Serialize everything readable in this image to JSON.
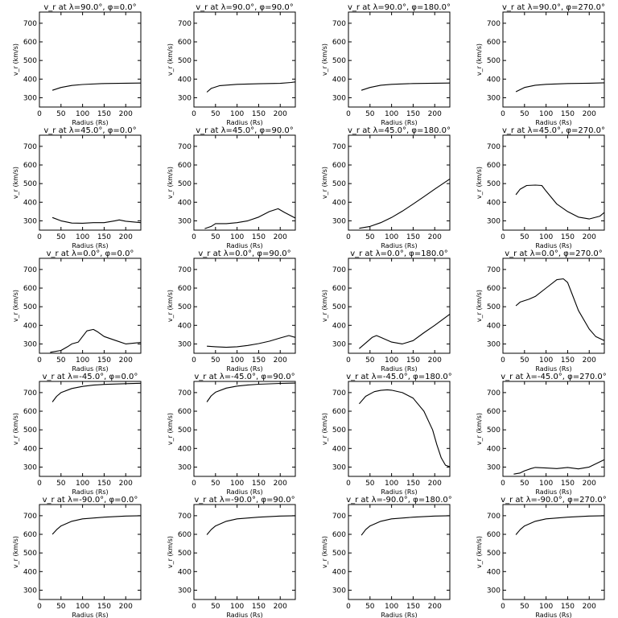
{
  "chart_data": [
    {
      "type": "line",
      "title": "v_r at λ=90.0°, φ=0.0°",
      "xlabel": "Radius (Rs)",
      "ylabel": "v_r (km/s)",
      "x": [
        30,
        50,
        75,
        100,
        150,
        200,
        235
      ],
      "y": [
        340,
        355,
        366,
        371,
        376,
        378,
        379
      ]
    },
    {
      "type": "line",
      "title": "v_r at λ=90.0°, φ=90.0°",
      "xlabel": "Radius (Rs)",
      "ylabel": "v_r (km/s)",
      "x": [
        30,
        40,
        60,
        100,
        150,
        200,
        225,
        235
      ],
      "y": [
        330,
        350,
        365,
        372,
        375,
        377,
        382,
        385
      ]
    },
    {
      "type": "line",
      "title": "v_r at λ=90.0°, φ=180.0°",
      "xlabel": "Radius (Rs)",
      "ylabel": "v_r (km/s)",
      "x": [
        30,
        50,
        75,
        100,
        150,
        200,
        235
      ],
      "y": [
        340,
        355,
        367,
        372,
        376,
        378,
        379
      ]
    },
    {
      "type": "line",
      "title": "v_r at λ=90.0°, φ=270.0°",
      "xlabel": "Radius (Rs)",
      "ylabel": "v_r (km/s)",
      "x": [
        30,
        50,
        75,
        100,
        150,
        200,
        235
      ],
      "y": [
        332,
        355,
        367,
        372,
        376,
        378,
        380
      ]
    },
    {
      "type": "line",
      "title": "v_r at λ=45.0°, φ=0.0°",
      "xlabel": "Radius (Rs)",
      "ylabel": "v_r (km/s)",
      "x": [
        30,
        50,
        75,
        100,
        125,
        150,
        175,
        185,
        200,
        235
      ],
      "y": [
        318,
        300,
        288,
        287,
        290,
        290,
        300,
        305,
        298,
        290
      ]
    },
    {
      "type": "line",
      "title": "v_r at λ=45.0°, φ=90.0°",
      "xlabel": "Radius (Rs)",
      "ylabel": "v_r (km/s)",
      "x": [
        25,
        40,
        50,
        75,
        100,
        125,
        150,
        175,
        195,
        210,
        235
      ],
      "y": [
        258,
        270,
        285,
        285,
        290,
        300,
        320,
        350,
        365,
        345,
        315
      ]
    },
    {
      "type": "line",
      "title": "v_r at λ=45.0°, φ=180.0°",
      "xlabel": "Radius (Rs)",
      "ylabel": "v_r (km/s)",
      "x": [
        25,
        50,
        75,
        100,
        125,
        150,
        175,
        200,
        235
      ],
      "y": [
        260,
        270,
        290,
        318,
        352,
        390,
        430,
        470,
        525
      ]
    },
    {
      "type": "line",
      "title": "v_r at λ=45.0°, φ=270.0°",
      "xlabel": "Radius (Rs)",
      "ylabel": "v_r (km/s)",
      "x": [
        30,
        40,
        55,
        75,
        90,
        100,
        125,
        150,
        175,
        200,
        225,
        235
      ],
      "y": [
        440,
        470,
        490,
        492,
        490,
        460,
        390,
        350,
        320,
        310,
        325,
        345
      ]
    },
    {
      "type": "line",
      "title": "v_r at λ=0.0°, φ=0.0°",
      "xlabel": "Radius (Rs)",
      "ylabel": "v_r (km/s)",
      "x": [
        25,
        50,
        65,
        75,
        90,
        100,
        110,
        125,
        135,
        150,
        175,
        200,
        235
      ],
      "y": [
        255,
        265,
        285,
        300,
        310,
        340,
        370,
        378,
        365,
        340,
        320,
        300,
        308
      ]
    },
    {
      "type": "line",
      "title": "v_r at λ=0.0°, φ=90.0°",
      "xlabel": "Radius (Rs)",
      "ylabel": "v_r (km/s)",
      "x": [
        30,
        50,
        75,
        100,
        125,
        150,
        175,
        200,
        220,
        235
      ],
      "y": [
        288,
        285,
        282,
        285,
        292,
        302,
        315,
        332,
        345,
        335
      ]
    },
    {
      "type": "line",
      "title": "v_r at λ=0.0°, φ=180.0°",
      "xlabel": "Radius (Rs)",
      "ylabel": "v_r (km/s)",
      "x": [
        25,
        40,
        55,
        65,
        75,
        100,
        125,
        150,
        175,
        200,
        235
      ],
      "y": [
        275,
        305,
        335,
        345,
        335,
        310,
        300,
        318,
        360,
        400,
        460
      ]
    },
    {
      "type": "line",
      "title": "v_r at λ=0.0°, φ=270.0°",
      "xlabel": "Radius (Rs)",
      "ylabel": "v_r (km/s)",
      "x": [
        30,
        40,
        60,
        75,
        100,
        125,
        140,
        150,
        160,
        175,
        200,
        215,
        235
      ],
      "y": [
        505,
        525,
        540,
        555,
        600,
        645,
        650,
        630,
        570,
        480,
        380,
        340,
        318
      ]
    },
    {
      "type": "line",
      "title": "v_r at λ=-45.0°, φ=0.0°",
      "xlabel": "Radius (Rs)",
      "ylabel": "v_r (km/s)",
      "x": [
        30,
        40,
        50,
        75,
        100,
        125,
        150,
        200,
        235
      ],
      "y": [
        650,
        680,
        700,
        722,
        733,
        740,
        744,
        748,
        750
      ]
    },
    {
      "type": "line",
      "title": "v_r at λ=-45.0°, φ=90.0°",
      "xlabel": "Radius (Rs)",
      "ylabel": "v_r (km/s)",
      "x": [
        30,
        40,
        50,
        75,
        100,
        125,
        150,
        200,
        235
      ],
      "y": [
        650,
        682,
        702,
        724,
        735,
        741,
        745,
        749,
        751
      ]
    },
    {
      "type": "line",
      "title": "v_r at λ=-45.0°, φ=180.0°",
      "xlabel": "Radius (Rs)",
      "ylabel": "v_r (km/s)",
      "x": [
        25,
        40,
        60,
        75,
        90,
        100,
        125,
        150,
        175,
        195,
        205,
        215,
        225,
        235
      ],
      "y": [
        640,
        680,
        705,
        712,
        715,
        713,
        700,
        670,
        600,
        500,
        420,
        350,
        310,
        302
      ]
    },
    {
      "type": "line",
      "title": "v_r at λ=-45.0°, φ=270.0°",
      "xlabel": "Radius (Rs)",
      "ylabel": "v_r (km/s)",
      "x": [
        25,
        40,
        50,
        65,
        75,
        100,
        125,
        150,
        175,
        200,
        235
      ],
      "y": [
        262,
        268,
        280,
        292,
        298,
        295,
        292,
        298,
        290,
        300,
        340
      ]
    },
    {
      "type": "line",
      "title": "v_r at λ=-90.0°, φ=0.0°",
      "xlabel": "Radius (Rs)",
      "ylabel": "v_r (km/s)",
      "x": [
        30,
        40,
        50,
        75,
        100,
        150,
        200,
        235
      ],
      "y": [
        600,
        625,
        645,
        670,
        683,
        692,
        698,
        700
      ]
    },
    {
      "type": "line",
      "title": "v_r at λ=-90.0°, φ=90.0°",
      "xlabel": "Radius (Rs)",
      "ylabel": "v_r (km/s)",
      "x": [
        30,
        40,
        50,
        75,
        100,
        150,
        200,
        235
      ],
      "y": [
        598,
        625,
        645,
        670,
        683,
        692,
        698,
        700
      ]
    },
    {
      "type": "line",
      "title": "v_r at λ=-90.0°, φ=180.0°",
      "xlabel": "Radius (Rs)",
      "ylabel": "v_r (km/s)",
      "x": [
        30,
        40,
        50,
        75,
        100,
        150,
        200,
        235
      ],
      "y": [
        595,
        625,
        645,
        670,
        683,
        692,
        698,
        700
      ]
    },
    {
      "type": "line",
      "title": "v_r at λ=-90.0°, φ=270.0°",
      "xlabel": "Radius (Rs)",
      "ylabel": "v_r (km/s)",
      "x": [
        30,
        40,
        50,
        75,
        100,
        150,
        200,
        235
      ],
      "y": [
        598,
        625,
        645,
        670,
        683,
        692,
        698,
        700
      ]
    }
  ],
  "axes": {
    "xlim": [
      0,
      235
    ],
    "ylim": [
      250,
      760
    ],
    "xticks": [
      0,
      50,
      100,
      150,
      200
    ],
    "yticks": [
      300,
      400,
      500,
      600,
      700
    ],
    "xlabel": "Radius (Rs)",
    "ylabel": "v_r (km/s)",
    "grid": false
  }
}
